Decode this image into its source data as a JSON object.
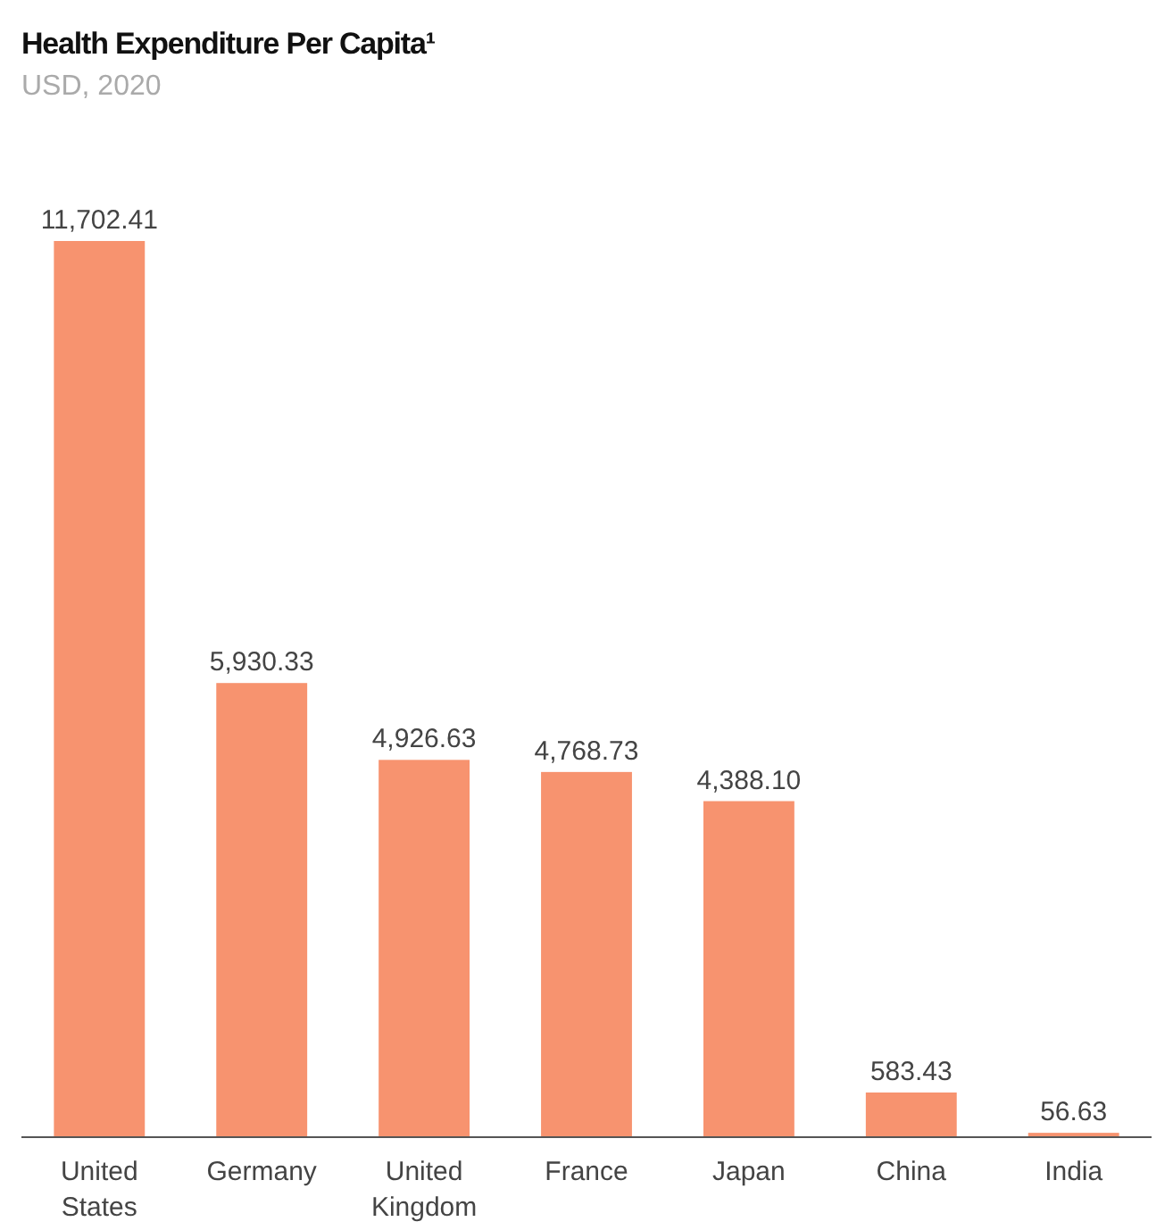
{
  "chart_data": {
    "type": "bar",
    "title": "Health Expenditure Per Capita¹",
    "subtitle": "USD, 2020",
    "categories": [
      "United States",
      "Germany",
      "United Kingdom",
      "France",
      "Japan",
      "China",
      "India"
    ],
    "values": [
      11702.41,
      5930.33,
      4926.63,
      4768.73,
      4388.1,
      583.43,
      56.63
    ],
    "value_labels": [
      "11,702.41",
      "5,930.33",
      "4,926.63",
      "4,768.73",
      "4,388.10",
      "583.43",
      "56.63"
    ],
    "color": "#f7936f",
    "ylim": [
      0,
      11702.41
    ],
    "tick_labels": "x"
  }
}
